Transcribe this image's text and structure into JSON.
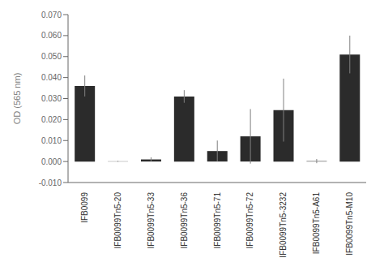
{
  "chart_data": {
    "type": "bar",
    "categories": [
      "IFB0099",
      "IFB0099Tn5-20",
      "IFB0099Tn5-33",
      "IFB0099Tn5-36",
      "IFB0099Tn5-71",
      "IFB0099Tn5-72",
      "IFB0099Tn5-3232",
      "IFB0099Tn5-A61",
      "IFB0099Tn5-M10"
    ],
    "values": [
      0.036,
      0.0001,
      0.001,
      0.031,
      0.005,
      0.012,
      0.0245,
      0.0002,
      0.051
    ],
    "errors": [
      0.005,
      0.0002,
      0.001,
      0.003,
      0.005,
      0.013,
      0.015,
      0.001,
      0.009
    ],
    "color": "#2b2b2b",
    "ylabel": "OD (565 nm)",
    "ylim": [
      -0.01,
      0.07
    ],
    "yticks": [
      {
        "value": -0.01,
        "label": "-0.010"
      },
      {
        "value": 0,
        "label": "0.000"
      },
      {
        "value": 0.01,
        "label": "0.010"
      },
      {
        "value": 0.02,
        "label": "0.020"
      },
      {
        "value": 0.03,
        "label": "0.030"
      },
      {
        "value": 0.04,
        "label": "0.040"
      },
      {
        "value": 0.05,
        "label": "0.050"
      },
      {
        "value": 0.06,
        "label": "0.060"
      },
      {
        "value": 0.07,
        "label": "0.070"
      }
    ],
    "grid": false
  }
}
